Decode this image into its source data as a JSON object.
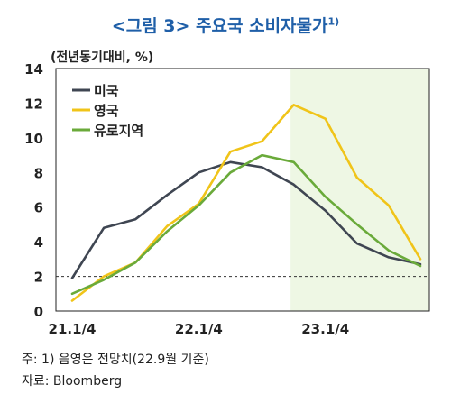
{
  "title": {
    "text": "<그림 3> 주요국 소비자물가",
    "sup": "1)"
  },
  "unit_label": "(전년동기대비, %)",
  "footnotes": {
    "note": "주: 1) 음영은 전망치(22.9월  기준)",
    "source": "자료: Bloomberg"
  },
  "colors": {
    "us": "#3f4652",
    "uk": "#f0c419",
    "eurozone": "#6aaa3a",
    "shade": "#eef7e4",
    "title": "#1f5fa8"
  },
  "chart_data": {
    "type": "line",
    "title": "<그림 3> 주요국 소비자물가",
    "ylabel": "(전년동기대비, %)",
    "ylim": [
      0,
      14
    ],
    "yticks": [
      0,
      2,
      4,
      6,
      8,
      10,
      12,
      14
    ],
    "x": [
      "21.1/4",
      "21.2/4",
      "21.3/4",
      "21.4/4",
      "22.1/4",
      "22.2/4",
      "22.3/4",
      "22.4/4",
      "23.1/4",
      "23.2/4",
      "23.3/4",
      "23.4/4"
    ],
    "xtick_labels": [
      "21.1/4",
      "22.1/4",
      "23.1/4"
    ],
    "xtick_indices": [
      0,
      4,
      8
    ],
    "forecast_start_index": 7,
    "reference_line": 2,
    "legend_placement": "top-left",
    "series": [
      {
        "name": "미국",
        "key": "us",
        "values": [
          1.9,
          4.8,
          5.3,
          6.7,
          8.0,
          8.6,
          8.3,
          7.3,
          5.8,
          3.9,
          3.1,
          2.7
        ]
      },
      {
        "name": "영국",
        "key": "uk",
        "values": [
          0.6,
          2.0,
          2.8,
          4.9,
          6.2,
          9.2,
          9.8,
          11.9,
          11.1,
          7.7,
          6.1,
          3.0
        ]
      },
      {
        "name": "유로지역",
        "key": "eurozone",
        "values": [
          1.0,
          1.8,
          2.8,
          4.6,
          6.1,
          8.0,
          9.0,
          8.6,
          6.6,
          5.0,
          3.5,
          2.6
        ]
      }
    ]
  }
}
